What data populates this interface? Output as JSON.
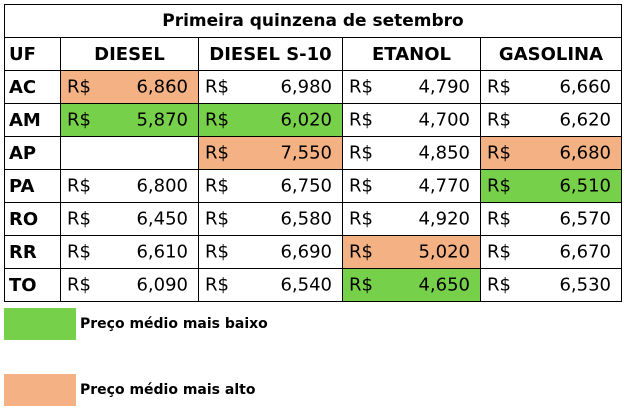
{
  "table": {
    "title": "Primeira quinzena de setembro",
    "columns": [
      "UF",
      "DIESEL",
      "DIESEL S-10",
      "ETANOL",
      "GASOLINA"
    ],
    "rows": [
      {
        "uf": "AC",
        "cells": [
          {
            "currency": "R$",
            "value": "6,860",
            "color": "#f4b183"
          },
          {
            "currency": "R$",
            "value": "6,980"
          },
          {
            "currency": "R$",
            "value": "4,790"
          },
          {
            "currency": "R$",
            "value": "6,660"
          }
        ]
      },
      {
        "uf": "AM",
        "cells": [
          {
            "currency": "R$",
            "value": "5,870",
            "color": "#77d04a"
          },
          {
            "currency": "R$",
            "value": "6,020",
            "color": "#77d04a"
          },
          {
            "currency": "R$",
            "value": "4,700"
          },
          {
            "currency": "R$",
            "value": "6,620"
          }
        ]
      },
      {
        "uf": "AP",
        "cells": [
          null,
          {
            "currency": "R$",
            "value": "7,550",
            "color": "#f4b183"
          },
          {
            "currency": "R$",
            "value": "4,850"
          },
          {
            "currency": "R$",
            "value": "6,680",
            "color": "#f4b183"
          }
        ]
      },
      {
        "uf": "PA",
        "cells": [
          {
            "currency": "R$",
            "value": "6,800"
          },
          {
            "currency": "R$",
            "value": "6,750"
          },
          {
            "currency": "R$",
            "value": "4,770"
          },
          {
            "currency": "R$",
            "value": "6,510",
            "color": "#77d04a"
          }
        ]
      },
      {
        "uf": "RO",
        "cells": [
          {
            "currency": "R$",
            "value": "6,450"
          },
          {
            "currency": "R$",
            "value": "6,580"
          },
          {
            "currency": "R$",
            "value": "4,920"
          },
          {
            "currency": "R$",
            "value": "6,570"
          }
        ]
      },
      {
        "uf": "RR",
        "cells": [
          {
            "currency": "R$",
            "value": "6,610"
          },
          {
            "currency": "R$",
            "value": "6,690"
          },
          {
            "currency": "R$",
            "value": "5,020",
            "color": "#f4b183"
          },
          {
            "currency": "R$",
            "value": "6,670"
          }
        ]
      },
      {
        "uf": "TO",
        "cells": [
          {
            "currency": "R$",
            "value": "6,090"
          },
          {
            "currency": "R$",
            "value": "6,540"
          },
          {
            "currency": "R$",
            "value": "4,650",
            "color": "#77d04a"
          },
          {
            "currency": "R$",
            "value": "6,530"
          }
        ]
      }
    ]
  },
  "legend": [
    {
      "label": "Preço médio mais baixo",
      "color": "#77d04a"
    },
    {
      "label": "Preço médio mais alto",
      "color": "#f4b183"
    }
  ]
}
